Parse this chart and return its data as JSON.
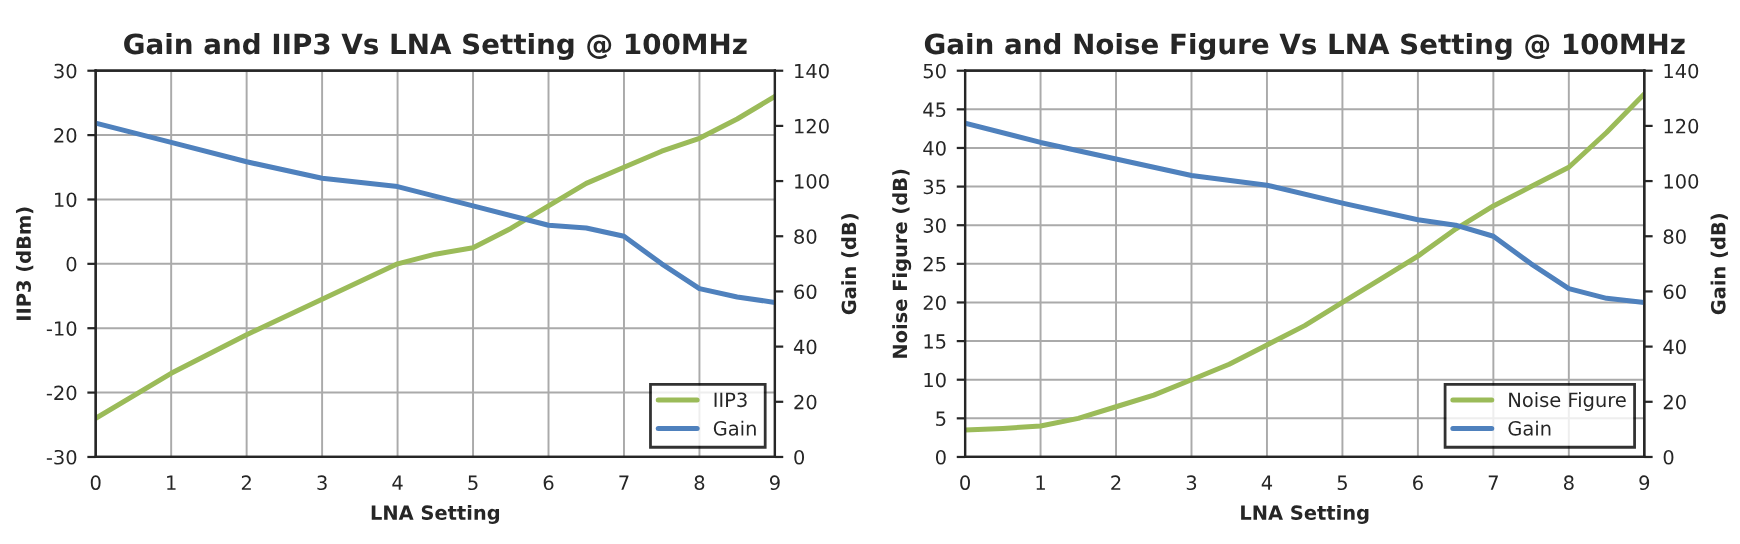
{
  "chart_data": [
    {
      "type": "line",
      "title": "Gain and IIP3 Vs LNA Setting @ 100MHz",
      "xlabel": "LNA Setting",
      "ylabel": "IIP3 (dBm)",
      "y2label": "Gain (dB)",
      "xlim": [
        0,
        9
      ],
      "xticks": [
        0,
        1,
        2,
        3,
        4,
        5,
        6,
        7,
        8,
        9
      ],
      "ylim": [
        -30,
        30
      ],
      "yticks": [
        -30,
        -20,
        -10,
        0,
        10,
        20,
        30
      ],
      "y2lim": [
        0,
        140
      ],
      "y2ticks": [
        0,
        20,
        40,
        60,
        80,
        100,
        120,
        140
      ],
      "grid": true,
      "legend": "bottom right",
      "marker": "none",
      "line_style": "solid",
      "series": [
        {
          "name": "IIP3",
          "color": "#9bbb59",
          "x": [
            0,
            1,
            2,
            3,
            4,
            4.5,
            5,
            5.5,
            6,
            6.5,
            7,
            7.5,
            8,
            8.5,
            9
          ],
          "values": [
            -24,
            -17,
            -11,
            -5.5,
            0,
            1.5,
            2.5,
            5.5,
            9,
            12.5,
            15,
            17.5,
            19.5,
            22.5,
            26
          ]
        },
        {
          "name": "Gain",
          "color": "#4f81bd",
          "axis": "y2",
          "x": [
            0,
            1,
            2,
            3,
            4,
            5,
            6,
            6.5,
            7,
            7.5,
            8,
            8.5,
            9
          ],
          "values": [
            121,
            114,
            107,
            101,
            98,
            91,
            84,
            83,
            80,
            70,
            61,
            58,
            56
          ]
        }
      ]
    },
    {
      "type": "line",
      "title": "Gain and Noise Figure Vs LNA Setting @ 100MHz",
      "xlabel": "LNA Setting",
      "ylabel": "Noise Figure (dB)",
      "y2label": "Gain (dB)",
      "xlim": [
        0,
        9
      ],
      "xticks": [
        0,
        1,
        2,
        3,
        4,
        5,
        6,
        7,
        8,
        9
      ],
      "ylim": [
        0,
        50
      ],
      "yticks": [
        0,
        5,
        10,
        15,
        20,
        25,
        30,
        35,
        40,
        45,
        50
      ],
      "y2lim": [
        0,
        140
      ],
      "y2ticks": [
        0,
        20,
        40,
        60,
        80,
        100,
        120,
        140
      ],
      "grid": true,
      "legend": "bottom right",
      "marker": "none",
      "line_style": "solid",
      "series": [
        {
          "name": "Noise Figure",
          "color": "#9bbb59",
          "x": [
            0,
            0.5,
            1,
            1.5,
            2,
            2.5,
            3,
            3.5,
            4,
            4.5,
            5,
            5.5,
            6,
            6.5,
            7,
            7.5,
            8,
            8.5,
            9
          ],
          "values": [
            3.5,
            3.7,
            4,
            5,
            6.5,
            8,
            10,
            12,
            14.5,
            17,
            20,
            23,
            26,
            29.5,
            32.5,
            35,
            37.5,
            42,
            47
          ]
        },
        {
          "name": "Gain",
          "color": "#4f81bd",
          "axis": "y2",
          "x": [
            0,
            1,
            2,
            3,
            4,
            5,
            6,
            6.5,
            7,
            7.5,
            8,
            8.5,
            9
          ],
          "values": [
            121,
            114,
            108,
            102,
            98.5,
            92,
            86,
            84,
            80,
            70,
            61,
            57.5,
            56
          ]
        }
      ]
    }
  ]
}
